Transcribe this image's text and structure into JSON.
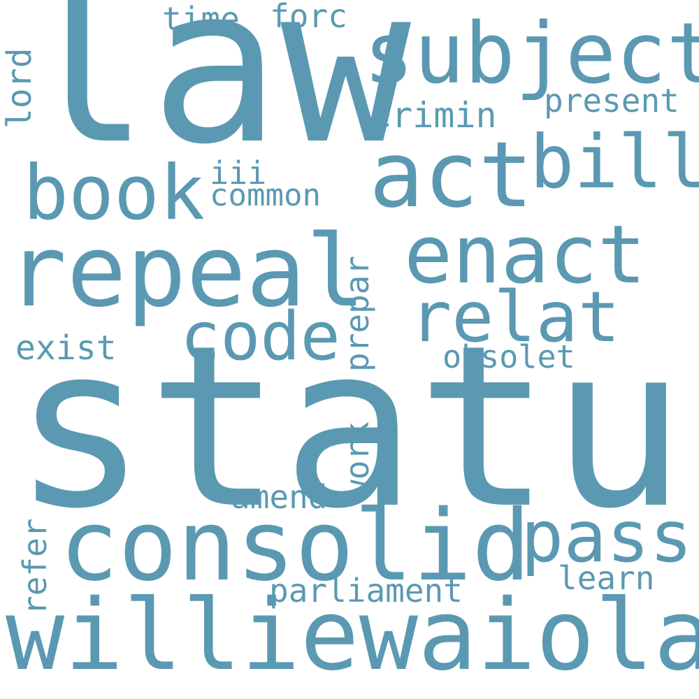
{
  "color": "#5b99b2",
  "background": "#ffffff",
  "words": {
    "statut": "statut",
    "law": "law",
    "consolid": "consolid",
    "williewaiola": "williewaiola",
    "repeal": "repeal",
    "subject": "subject",
    "act": "act",
    "bill": "bill",
    "book": "book",
    "enact": "enact",
    "relat": "relat",
    "code": "code",
    "pass": "pass",
    "crimin": "crimin",
    "present": "present",
    "time": "time",
    "forc": "forc",
    "lord": "lord",
    "iii": "iii",
    "common": "common",
    "exist": "exist",
    "prepar": "prepar",
    "obsolet": "obsolet",
    "work": "work",
    "amend": "amend",
    "refer": "refer",
    "parliament": "parliament",
    "learn": "learn"
  }
}
